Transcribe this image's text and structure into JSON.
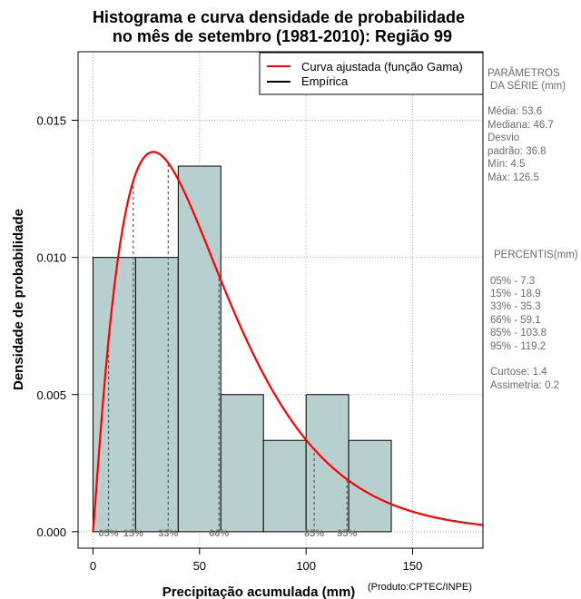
{
  "chart_data": {
    "type": "bar",
    "title_lines": [
      "Histograma e curva densidade de probabilidade",
      "no mês de setembro (1981-2010): Região 99"
    ],
    "xlabel": "Precipitação acumulada (mm)",
    "ylabel": "Densidade de probabilidade",
    "credit": "(Produto:CPTEC/INPE)",
    "xlim": [
      -7,
      183
    ],
    "ylim": [
      -0.0006,
      0.0175
    ],
    "x_ticks": [
      0,
      50,
      100,
      150
    ],
    "y_ticks": [
      0.0,
      0.005,
      0.01,
      0.015
    ],
    "y_tick_labels": [
      "0.000",
      "0.005",
      "0.010",
      "0.015"
    ],
    "bins": [
      {
        "x0": 0,
        "x1": 20,
        "density": 0.01
      },
      {
        "x0": 20,
        "x1": 40,
        "density": 0.01
      },
      {
        "x0": 40,
        "x1": 60,
        "density": 0.01333
      },
      {
        "x0": 60,
        "x1": 80,
        "density": 0.005
      },
      {
        "x0": 80,
        "x1": 100,
        "density": 0.00333
      },
      {
        "x0": 100,
        "x1": 120,
        "density": 0.005
      },
      {
        "x0": 120,
        "x1": 140,
        "density": 0.00333
      }
    ],
    "gamma_fit": {
      "shape": 2.116,
      "scale": 25.35
    },
    "percentile_markers": [
      {
        "label": "05%",
        "value": 7.3
      },
      {
        "label": "15%",
        "value": 18.9
      },
      {
        "label": "33%",
        "value": 35.3
      },
      {
        "label": "66%",
        "value": 59.1
      },
      {
        "label": "85%",
        "value": 103.8
      },
      {
        "label": "95%",
        "value": 119.2
      }
    ],
    "legend": [
      {
        "label": "Curva ajustada (função Gama)",
        "color": "#ff0000"
      },
      {
        "label": "Empírica",
        "color": "#000000"
      }
    ],
    "colors": {
      "bar_fill": "#b7cfce",
      "bar_stroke": "#000000",
      "curve": "#ff0000",
      "grid": "#b0b0b0",
      "marker": "#555555"
    }
  },
  "side_panel": {
    "params_header": [
      "PARÂMETROS",
      "DA SÉRIE (mm)"
    ],
    "params": [
      "Média:  53.6",
      "Mediana:  46.7",
      "Desvio",
      "padrão:  36.8",
      "Mín:  4.5",
      "Máx:  126.5"
    ],
    "percentis_header": "PERCENTIS(mm)",
    "percentis": [
      "05% -  7.3",
      "15% -  18.9",
      "33% -  35.3",
      "66% -  59.1",
      "85% -  103.8",
      "95% -  119.2"
    ],
    "extra": [
      "Curtose:  1.4",
      "Assimetria:  0.2"
    ]
  }
}
